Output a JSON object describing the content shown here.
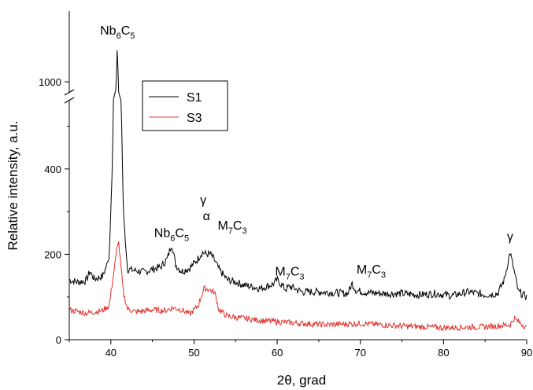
{
  "chart_data": {
    "type": "line",
    "title": "",
    "xlabel": "2θ, grad",
    "ylabel": "Relative intensity, a.u.",
    "xlim": [
      35,
      90
    ],
    "ylim": [
      0,
      1150
    ],
    "y_axis_break": [
      560,
      980
    ],
    "grid": false,
    "legend": {
      "placement": "top-center",
      "entries": [
        "S1",
        "S3"
      ]
    },
    "x_ticks": [
      "40",
      "50",
      "60",
      "70",
      "80",
      "90"
    ],
    "y_ticks": [
      "0",
      "200",
      "400",
      "1000"
    ],
    "series": [
      {
        "name": "S1",
        "color": "#000000",
        "x": [
          35,
          36,
          37,
          37.5,
          38,
          39,
          39.8,
          40.2,
          40.5,
          40.8,
          41.1,
          41.5,
          42,
          43,
          44,
          45,
          46,
          46.8,
          47.3,
          47.8,
          48.5,
          49.5,
          50.3,
          51,
          51.5,
          52,
          52.5,
          53,
          54,
          55,
          56,
          58,
          59.5,
          60,
          61,
          61.5,
          63,
          65,
          67,
          68.5,
          69,
          69.5,
          71,
          73,
          75,
          77,
          79,
          81,
          83,
          85,
          86.5,
          87.3,
          88,
          88.5,
          89,
          90
        ],
        "y": [
          140,
          135,
          138,
          160,
          142,
          148,
          190,
          420,
          900,
          1100,
          700,
          300,
          165,
          162,
          158,
          165,
          170,
          190,
          225,
          175,
          160,
          168,
          185,
          205,
          200,
          200,
          185,
          165,
          140,
          135,
          128,
          120,
          130,
          140,
          118,
          125,
          112,
          112,
          110,
          108,
          132,
          115,
          110,
          108,
          108,
          105,
          108,
          103,
          112,
          105,
          108,
          140,
          205,
          160,
          112,
          100
        ]
      },
      {
        "name": "S3",
        "color": "#e0302a",
        "x": [
          35,
          37,
          39,
          39.8,
          40.3,
          40.9,
          41.5,
          42,
          43,
          45,
          46.5,
          47.5,
          48.5,
          49.5,
          50.5,
          51.2,
          51.8,
          52.5,
          53,
          54,
          56,
          58,
          60,
          63,
          66,
          70,
          75,
          80,
          85,
          88,
          88.5,
          90
        ],
        "y": [
          70,
          62,
          68,
          80,
          150,
          235,
          110,
          72,
          65,
          70,
          68,
          75,
          70,
          60,
          80,
          120,
          118,
          110,
          70,
          55,
          50,
          45,
          42,
          38,
          35,
          38,
          32,
          28,
          30,
          35,
          50,
          28
        ]
      }
    ],
    "annotations": [
      {
        "base": "Nb",
        "sub": "6",
        "base2": "C",
        "sub2": "5",
        "x": 40.8,
        "y": 1110
      },
      {
        "base": "Nb",
        "sub": "6",
        "base2": "C",
        "sub2": "5",
        "x": 47.3,
        "y": 240
      },
      {
        "base": "γ",
        "x": 51.1,
        "y": 318
      },
      {
        "base": "α",
        "x": 51.5,
        "y": 280
      },
      {
        "base": "M",
        "sub": "7",
        "base2": "C",
        "sub2": "3",
        "x": 54.6,
        "y": 258
      },
      {
        "base": "M",
        "sub": "7",
        "base2": "C",
        "sub2": "3",
        "x": 61.5,
        "y": 150
      },
      {
        "base": "M",
        "sub": "7",
        "base2": "C",
        "sub2": "3",
        "x": 71.3,
        "y": 155
      },
      {
        "base": "γ",
        "x": 88,
        "y": 232
      }
    ]
  }
}
